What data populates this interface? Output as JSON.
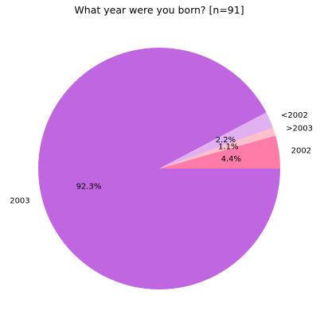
{
  "chart_data": {
    "type": "pie",
    "title": "What year were you born? [n=91]",
    "slices": [
      {
        "label": "2002",
        "value": 4.4,
        "pct_label": "4.4%",
        "color": "#ff7ba8"
      },
      {
        "label": ">2003",
        "value": 1.1,
        "pct_label": "1.1%",
        "color": "#ffc0cb"
      },
      {
        "label": "<2002",
        "value": 2.2,
        "pct_label": "2.2%",
        "color": "#e0b0f0"
      },
      {
        "label": "2003",
        "value": 92.3,
        "pct_label": "92.3%",
        "color": "#bf66e0"
      }
    ],
    "start_angle_deg": 0,
    "direction": "counterclockwise"
  }
}
